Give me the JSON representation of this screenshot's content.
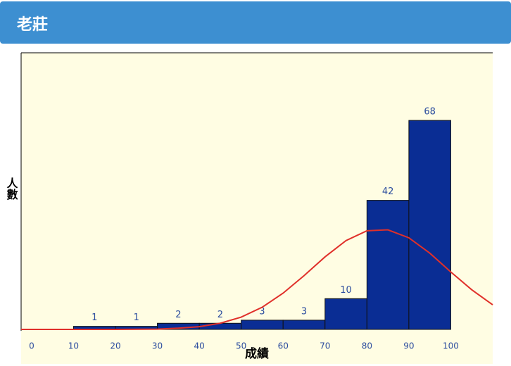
{
  "header": {
    "title": "老莊"
  },
  "chart_data": {
    "type": "histogram",
    "x_label": "成績",
    "y_label": "人數",
    "bins": [
      10,
      20,
      30,
      40,
      50,
      60,
      70,
      80,
      90,
      100
    ],
    "values": [
      1,
      1,
      2,
      2,
      3,
      3,
      10,
      42,
      68
    ],
    "color": "#0a2d94",
    "edge_color": "#111111",
    "label_color": "#2b4c9e",
    "xlim": [
      -2.5,
      110
    ],
    "ylim": [
      0,
      90
    ],
    "xticks": [
      0,
      10,
      20,
      30,
      40,
      50,
      60,
      70,
      80,
      90,
      100
    ],
    "curve": {
      "color": "#e0302a",
      "x": [
        -2.5,
        0,
        10,
        20,
        30,
        35,
        40,
        45,
        50,
        55,
        60,
        65,
        70,
        75,
        80,
        85,
        90,
        95,
        100,
        105,
        110
      ],
      "values": [
        0,
        0,
        0,
        0,
        0.1,
        0.4,
        0.9,
        2.0,
        4.0,
        7.2,
        11.8,
        17.5,
        23.6,
        28.9,
        32.1,
        32.4,
        29.8,
        24.8,
        18.7,
        12.9,
        8.0
      ]
    }
  }
}
